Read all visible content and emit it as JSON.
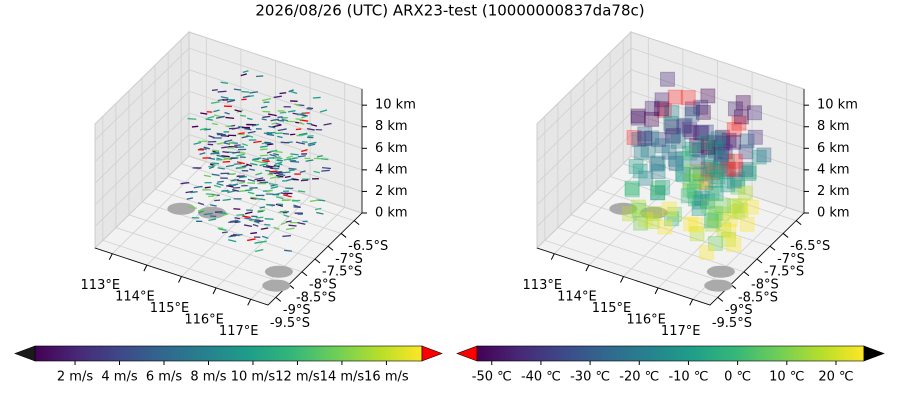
{
  "title": "2026/08/26 (UTC) ARX23-test (10000000837da78c)",
  "chart_data": [
    {
      "type": "quiver3d",
      "colormap": "viridis",
      "xlim": [
        112.5,
        117.5
      ],
      "xticks": [
        {
          "value": 113,
          "label": "113°E"
        },
        {
          "value": 114,
          "label": "114°E"
        },
        {
          "value": 115,
          "label": "115°E"
        },
        {
          "value": 116,
          "label": "116°E"
        },
        {
          "value": 117,
          "label": "117°E"
        }
      ],
      "ylim": [
        -9.8,
        -6.2
      ],
      "yticks": [
        {
          "value": -6.5,
          "label": "-6.5°S"
        },
        {
          "value": -7,
          "label": "-7°S"
        },
        {
          "value": -7.5,
          "label": "-7.5°S"
        },
        {
          "value": -8,
          "label": "-8°S"
        },
        {
          "value": -8.5,
          "label": "-8.5°S"
        },
        {
          "value": -9,
          "label": "-9°S"
        },
        {
          "value": -9.5,
          "label": "-9.5°S"
        }
      ],
      "zlim": [
        0,
        11.5
      ],
      "zticks": [
        {
          "value": 0,
          "label": "0 km"
        },
        {
          "value": 2,
          "label": "2 km"
        },
        {
          "value": 4,
          "label": "4 km"
        },
        {
          "value": 6,
          "label": "6 km"
        },
        {
          "value": 8,
          "label": "8 km"
        },
        {
          "value": 10,
          "label": "10 km"
        }
      ],
      "colorbar": {
        "lim": [
          0.2,
          17.6
        ],
        "ticks": [
          {
            "value": 2,
            "label": "2 m/s"
          },
          {
            "value": 4,
            "label": "4 m/s"
          },
          {
            "value": 6,
            "label": "6 m/s"
          },
          {
            "value": 8,
            "label": "8 m/s"
          },
          {
            "value": 10,
            "label": "10 m/s"
          },
          {
            "value": 12,
            "label": "12 m/s"
          },
          {
            "value": 14,
            "label": "14 m/s"
          },
          {
            "value": 16,
            "label": "16 m/s"
          }
        ],
        "extend_colors": [
          "#1a1a1a",
          "#ff0000"
        ]
      }
    },
    {
      "type": "voxel3d",
      "colormap": "viridis",
      "xlim": [
        112.5,
        117.5
      ],
      "xticks": [
        {
          "value": 113,
          "label": "113°E"
        },
        {
          "value": 114,
          "label": "114°E"
        },
        {
          "value": 115,
          "label": "115°E"
        },
        {
          "value": 116,
          "label": "116°E"
        },
        {
          "value": 117,
          "label": "117°E"
        }
      ],
      "ylim": [
        -9.8,
        -6.2
      ],
      "yticks": [
        {
          "value": -6.5,
          "label": "-6.5°S"
        },
        {
          "value": -7,
          "label": "-7°S"
        },
        {
          "value": -7.5,
          "label": "-7.5°S"
        },
        {
          "value": -8,
          "label": "-8°S"
        },
        {
          "value": -8.5,
          "label": "-8.5°S"
        },
        {
          "value": -9,
          "label": "-9°S"
        },
        {
          "value": -9.5,
          "label": "-9.5°S"
        }
      ],
      "zlim": [
        0,
        11.5
      ],
      "zticks": [
        {
          "value": 0,
          "label": "0 km"
        },
        {
          "value": 2,
          "label": "2 km"
        },
        {
          "value": 4,
          "label": "4 km"
        },
        {
          "value": 6,
          "label": "6 km"
        },
        {
          "value": 8,
          "label": "8 km"
        },
        {
          "value": 10,
          "label": "10 km"
        }
      ],
      "colorbar": {
        "lim": [
          -53,
          25.7
        ],
        "ticks": [
          {
            "value": -50,
            "label": "-50 ℃"
          },
          {
            "value": -40,
            "label": "-40 ℃"
          },
          {
            "value": -30,
            "label": "-30 ℃"
          },
          {
            "value": -20,
            "label": "-20 ℃"
          },
          {
            "value": -10,
            "label": "-10 ℃"
          },
          {
            "value": 0,
            "label": "0 ℃"
          },
          {
            "value": 10,
            "label": "10 ℃"
          },
          {
            "value": 20,
            "label": "20 ℃"
          }
        ],
        "extend_colors": [
          "#ff0000",
          "#000000"
        ]
      }
    }
  ]
}
